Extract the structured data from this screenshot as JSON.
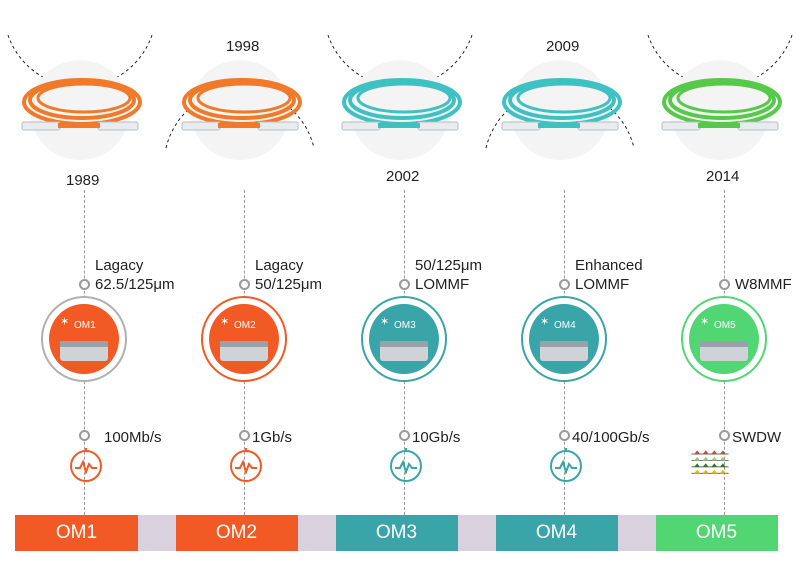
{
  "columns": [
    {
      "id": "om1",
      "year": "1989",
      "year_position": "below",
      "spec_lines": [
        "Lagacy",
        "62.5/125μm"
      ],
      "speed": "100Mb/s",
      "reel_label": "OM1",
      "name": "OM1",
      "color": "#f15a24",
      "cable_color": "#f07a2a",
      "speed_icon": "speedometer-icon"
    },
    {
      "id": "om2",
      "year": "1998",
      "year_position": "above",
      "spec_lines": [
        "Lagacy",
        "50/125μm"
      ],
      "speed": "1Gb/s",
      "reel_label": "OM2",
      "name": "OM2",
      "color": "#f15a24",
      "cable_color": "#f07a2a",
      "speed_icon": "speedometer-icon"
    },
    {
      "id": "om3",
      "year": "2002",
      "year_position": "below",
      "spec_lines": [
        "50/125μm",
        "LOMMF"
      ],
      "speed": "10Gb/s",
      "reel_label": "OM3",
      "name": "OM3",
      "color": "#3aa5a8",
      "cable_color": "#3fc1c3",
      "speed_icon": "speedometer-icon"
    },
    {
      "id": "om4",
      "year": "2009",
      "year_position": "above",
      "spec_lines": [
        "Enhanced",
        "LOMMF"
      ],
      "speed": "40/100Gb/s",
      "reel_label": "OM4",
      "name": "OM4",
      "color": "#3aa5a8",
      "cable_color": "#3fc1c3",
      "speed_icon": "speedometer-icon"
    },
    {
      "id": "om5",
      "year": "2014",
      "year_position": "below",
      "spec_lines": [
        "W8MMF"
      ],
      "speed": "SWDW",
      "reel_label": "OM5",
      "name": "OM5",
      "color": "#52d674",
      "cable_color": "#56c94a",
      "speed_icon": "wavelength-icon"
    }
  ],
  "colors": {
    "bar_gap": "#d9d2de",
    "dashed_line": "#9a9a9a"
  }
}
